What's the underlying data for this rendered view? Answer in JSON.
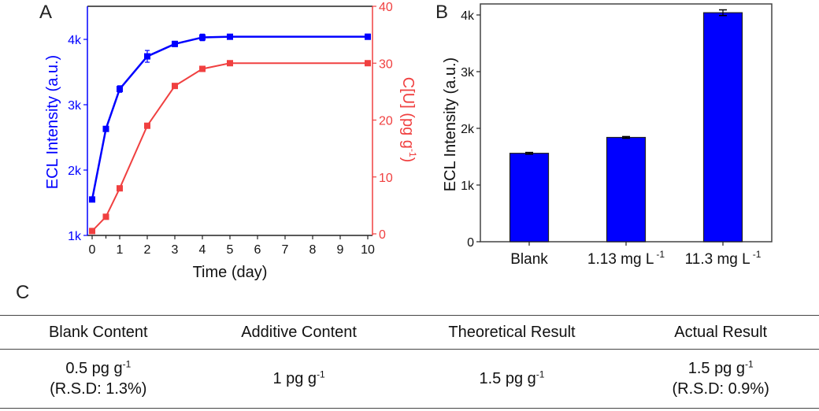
{
  "panels": {
    "a": "A",
    "b": "B",
    "c": "C"
  },
  "colors": {
    "blue": "#0000ff",
    "red": "#f04040",
    "black": "#222222"
  },
  "chart_data": [
    {
      "type": "line",
      "panel": "A",
      "xlabel": "Time (day)",
      "ylabel": "ECL Intensity (a.u.)",
      "y2label": "C[U] (pg g -1)",
      "x_ticks": [
        0,
        1,
        2,
        3,
        4,
        5,
        6,
        7,
        8,
        9,
        10
      ],
      "xlim": [
        0,
        10
      ],
      "ylim": [
        1000,
        4000
      ],
      "y_ticks": [
        {
          "v": 1000,
          "label": "1k"
        },
        {
          "v": 2000,
          "label": "2k"
        },
        {
          "v": 3000,
          "label": "3k"
        },
        {
          "v": 4000,
          "label": "4k"
        }
      ],
      "y2lim": [
        0,
        40
      ],
      "y2_ticks": [
        0,
        10,
        20,
        30,
        40
      ],
      "series": [
        {
          "name": "ECL Intensity",
          "axis": "left",
          "color": "#0000ff",
          "x": [
            0,
            0.5,
            1,
            2,
            3,
            4,
            5,
            10
          ],
          "values": [
            1550,
            2630,
            3240,
            3740,
            3930,
            4030,
            4040,
            4040
          ],
          "errors": [
            20,
            30,
            50,
            90,
            40,
            50,
            30,
            40
          ]
        },
        {
          "name": "C[U]",
          "axis": "right",
          "color": "#f04040",
          "x": [
            0,
            0.5,
            1,
            2,
            3,
            4,
            5,
            10
          ],
          "values": [
            0.5,
            3,
            8,
            19,
            26,
            29,
            30,
            30
          ]
        }
      ]
    },
    {
      "type": "bar",
      "panel": "B",
      "ylabel": "ECL Intensity (a.u.)",
      "categories": [
        {
          "main": "Blank",
          "sup": ""
        },
        {
          "main": "1.13 mg L",
          "sup": "-1"
        },
        {
          "main": "11.3 mg L",
          "sup": "-1"
        }
      ],
      "values": [
        1560,
        1840,
        4040
      ],
      "errors": [
        15,
        15,
        50
      ],
      "ylim": [
        0,
        4200
      ],
      "y_ticks": [
        {
          "v": 0,
          "label": "0"
        },
        {
          "v": 1000,
          "label": "1k"
        },
        {
          "v": 2000,
          "label": "2k"
        },
        {
          "v": 3000,
          "label": "3k"
        },
        {
          "v": 4000,
          "label": "4k"
        }
      ],
      "color": "#0000ff"
    }
  ],
  "table": {
    "headers": [
      "Blank Content",
      "Additive Content",
      "Theoretical Result",
      "Actual Result"
    ],
    "cells": [
      {
        "value": "0.5 pg g",
        "sup": "-1",
        "note": "(R.S.D: 1.3%)"
      },
      {
        "value": "1 pg g",
        "sup": "-1",
        "note": ""
      },
      {
        "value": "1.5 pg g",
        "sup": "-1",
        "note": ""
      },
      {
        "value": "1.5 pg g",
        "sup": "-1",
        "note": "(R.S.D: 0.9%)"
      }
    ]
  }
}
